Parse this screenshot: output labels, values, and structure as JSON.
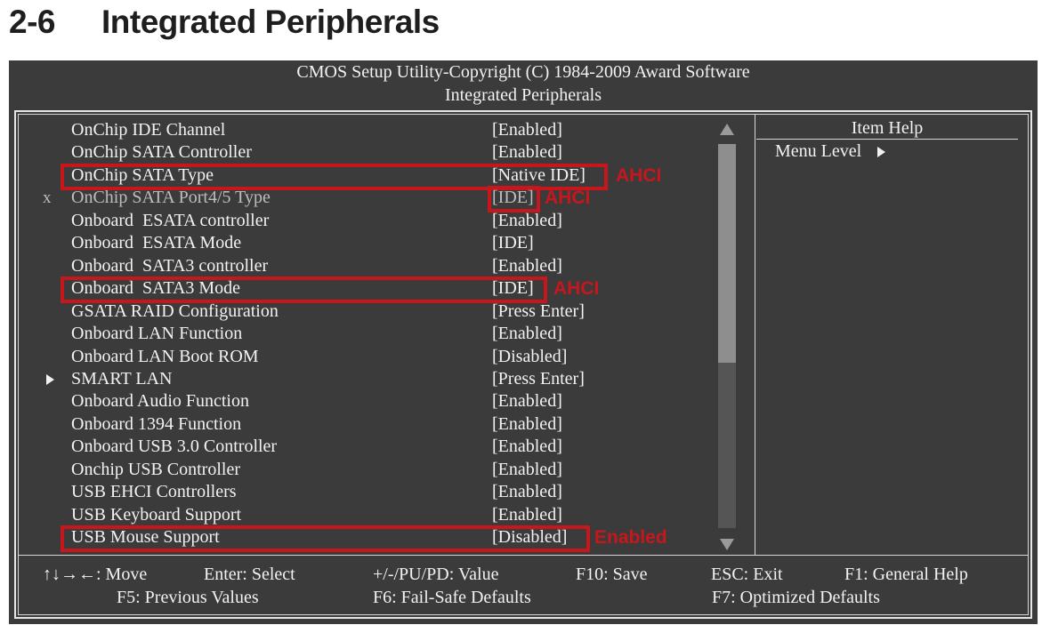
{
  "section": {
    "number": "2-6",
    "title": "Integrated Peripherals"
  },
  "bios": {
    "header_line1": "CMOS Setup Utility-Copyright (C) 1984-2009 Award Software",
    "header_line2": "Integrated Peripherals",
    "items": [
      {
        "label": "OnChip IDE Channel",
        "value": "[Enabled]"
      },
      {
        "label": "OnChip SATA Controller",
        "value": "[Enabled]"
      },
      {
        "label": "OnChip SATA Type",
        "value": "[Native IDE]",
        "highlighted": true,
        "annotation": "AHCI"
      },
      {
        "label": "OnChip SATA Port4/5 Type",
        "value": "[IDE]",
        "marker": "x",
        "disabled": true,
        "highlighted": true,
        "annotation": "AHCI"
      },
      {
        "label": "Onboard  ESATA controller",
        "value": "[Enabled]"
      },
      {
        "label": "Onboard  ESATA Mode",
        "value": "[IDE]"
      },
      {
        "label": "Onboard  SATA3 controller",
        "value": "[Enabled]"
      },
      {
        "label": "Onboard  SATA3 Mode",
        "value": "[IDE]",
        "highlighted": true,
        "annotation": "AHCI"
      },
      {
        "label": "GSATA RAID Configuration",
        "value": "[Press Enter]"
      },
      {
        "label": "Onboard LAN Function",
        "value": "[Enabled]"
      },
      {
        "label": "Onboard LAN Boot ROM",
        "value": "[Disabled]"
      },
      {
        "label": "SMART LAN",
        "value": "[Press Enter]",
        "submenu": true
      },
      {
        "label": "Onboard Audio Function",
        "value": "[Enabled]"
      },
      {
        "label": "Onboard 1394 Function",
        "value": "[Enabled]"
      },
      {
        "label": "Onboard USB 3.0 Controller",
        "value": "[Enabled]"
      },
      {
        "label": "Onchip USB Controller",
        "value": "[Enabled]"
      },
      {
        "label": "USB EHCI Controllers",
        "value": "[Enabled]"
      },
      {
        "label": "USB Keyboard Support",
        "value": "[Enabled]"
      },
      {
        "label": "USB Mouse Support",
        "value": "[Disabled]",
        "highlighted": true,
        "annotation": "Enabled"
      }
    ],
    "help": {
      "title": "Item Help",
      "menu_level": "Menu Level"
    },
    "footer": {
      "move": "↑↓→←: Move",
      "enter": "Enter: Select",
      "value": "+/-/PU/PD: Value",
      "save": "F10: Save",
      "exit": "ESC: Exit",
      "general_help": "F1: General Help",
      "previous": "F5: Previous Values",
      "failsafe": "F6: Fail-Safe Defaults",
      "optimized": "F7: Optimized Defaults"
    },
    "colors": {
      "background": "#3b3b3b",
      "text": "#f2f2f2",
      "disabled_text": "#bdbdbd",
      "annotation": "#c8161d"
    },
    "scrollbar_position": 0.0
  }
}
